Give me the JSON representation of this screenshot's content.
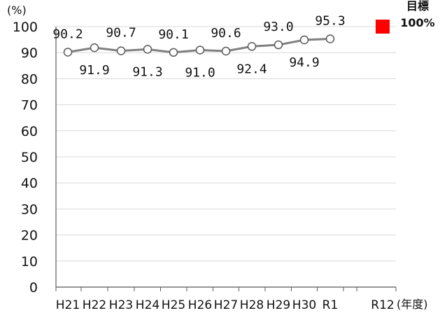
{
  "chart_data": {
    "type": "line",
    "title": "",
    "categories": [
      "H21",
      "H22",
      "H23",
      "H24",
      "H25",
      "H26",
      "H27",
      "H28",
      "H29",
      "H30",
      "R1",
      "R12"
    ],
    "series": [
      {
        "values": [
          90.2,
          91.9,
          90.7,
          91.3,
          90.1,
          91.0,
          90.6,
          92.4,
          93.0,
          94.9,
          95.3,
          null
        ],
        "labels": [
          "90.2",
          "91.9",
          "90.7",
          "91.3",
          "90.1",
          "91.0",
          "90.6",
          "92.4",
          "93.0",
          "94.9",
          "95.3",
          ""
        ]
      }
    ],
    "target": {
      "category": "R12",
      "value": 100,
      "label_top": "目標",
      "label_bottom": "100%",
      "color": "#ff0000"
    },
    "yticks": [
      "0",
      "10",
      "20",
      "30",
      "40",
      "50",
      "60",
      "70",
      "80",
      "90",
      "100"
    ],
    "ylim": [
      0,
      100
    ],
    "ylabel": "(%)",
    "xlabel": "(年度)",
    "grid": true,
    "colors": {
      "line": "#808080",
      "marker_fill": "#ffffff",
      "grid": "#d9d9d9",
      "axis": "#595959"
    }
  }
}
